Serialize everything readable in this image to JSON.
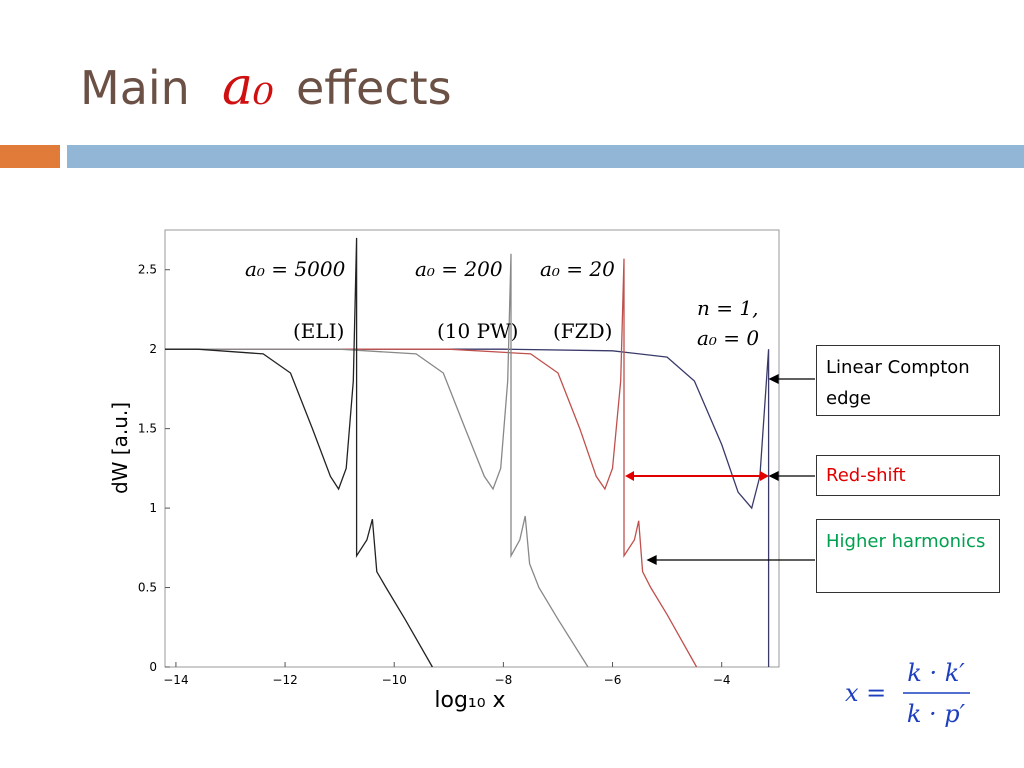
{
  "slide": {
    "title": {
      "pre": "Main",
      "symbol": "a₀",
      "post": "effects"
    },
    "callouts": [
      "Linear Compton edge",
      "Red-shift",
      "Higher harmonics"
    ],
    "formula": {
      "lhs": "x =",
      "numerator": "k · k′",
      "denominator": "k · p′"
    }
  },
  "chart_data": {
    "type": "line",
    "x_label": "log₁₀ x",
    "y_label": "dW [a.u.]",
    "xlim": [
      -14.2,
      -2.95
    ],
    "ylim": [
      0,
      2.75
    ],
    "xticks": [
      {
        "value": -14,
        "label": "−14"
      },
      {
        "value": -12,
        "label": "−12"
      },
      {
        "value": -10,
        "label": "−10"
      },
      {
        "value": -8,
        "label": "−8"
      },
      {
        "value": -6,
        "label": "−6"
      },
      {
        "value": -4,
        "label": "−4"
      }
    ],
    "yticks": [
      0,
      0.5,
      1,
      1.5,
      2,
      2.5
    ],
    "annotations": [
      "a₀ = 5000",
      "a₀ = 200",
      "a₀ = 20",
      "(ELI)",
      "(10 PW)",
      "(FZD)",
      "n  = 1,",
      "a₀ = 0"
    ],
    "series": [
      {
        "color": "#3a3a6a",
        "x": [
          -14.2,
          -8,
          -6,
          -5,
          -4.5,
          -4,
          -3.7,
          -3.45,
          -3.3,
          -3.14,
          -3.14
        ],
        "values": [
          2,
          2,
          1.99,
          1.95,
          1.8,
          1.4,
          1.1,
          1.0,
          1.2,
          2,
          0
        ]
      },
      {
        "color": "#c0504d",
        "x": [
          -14.2,
          -9,
          -7.5,
          -7,
          -6.6,
          -6.3,
          -6.14,
          -6.0,
          -5.85,
          -5.79,
          -5.79,
          -5.6,
          -5.52,
          -5.45,
          -5.3,
          -5,
          -4.46
        ],
        "values": [
          2,
          2,
          1.97,
          1.85,
          1.5,
          1.2,
          1.12,
          1.25,
          1.8,
          2.57,
          0.7,
          0.8,
          0.92,
          0.6,
          0.5,
          0.33,
          0
        ]
      },
      {
        "color": "#888888",
        "x": [
          -14.2,
          -11,
          -9.6,
          -9.1,
          -8.7,
          -8.35,
          -8.19,
          -8.05,
          -7.92,
          -7.86,
          -7.86,
          -7.7,
          -7.6,
          -7.52,
          -7.35,
          -7,
          -6.45
        ],
        "values": [
          2,
          2,
          1.97,
          1.85,
          1.5,
          1.2,
          1.12,
          1.25,
          1.8,
          2.6,
          0.7,
          0.8,
          0.95,
          0.65,
          0.5,
          0.3,
          0
        ]
      },
      {
        "color": "#222222",
        "x": [
          -14.2,
          -13.6,
          -12.4,
          -11.9,
          -11.5,
          -11.17,
          -11.02,
          -10.88,
          -10.75,
          -10.69,
          -10.69,
          -10.5,
          -10.4,
          -10.32,
          -10.15,
          -9.8,
          -9.3
        ],
        "values": [
          2,
          2,
          1.97,
          1.85,
          1.5,
          1.2,
          1.12,
          1.25,
          1.8,
          2.7,
          0.7,
          0.8,
          0.93,
          0.6,
          0.5,
          0.3,
          0
        ]
      }
    ]
  }
}
